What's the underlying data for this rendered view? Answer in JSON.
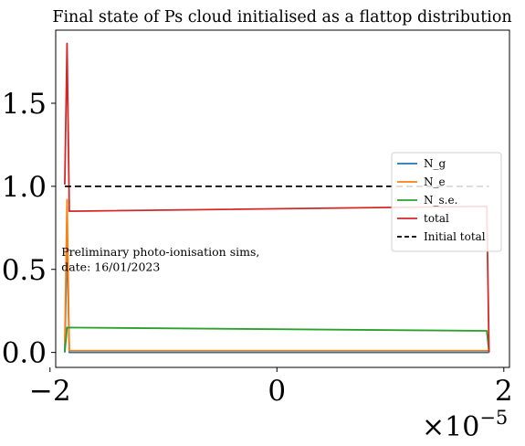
{
  "chart_data": {
    "type": "line",
    "title": "Final state of Ps cloud initialised as a flattop distribution",
    "xlabel": "",
    "ylabel": "",
    "x_multiplier_label": "×10",
    "x_multiplier_exponent": "−5",
    "xlim": [
      -1.95e-05,
      2.05e-05
    ],
    "ylim": [
      -0.09,
      1.94
    ],
    "x_ticks": [
      {
        "value": -2e-05,
        "label": "−2"
      },
      {
        "value": 0,
        "label": "0"
      },
      {
        "value": 2e-05,
        "label": "2"
      }
    ],
    "y_ticks": [
      {
        "value": 0.0,
        "label": "0.0"
      },
      {
        "value": 0.5,
        "label": "0.5"
      },
      {
        "value": 1.0,
        "label": "1.0"
      },
      {
        "value": 1.5,
        "label": "1.5"
      }
    ],
    "grid": false,
    "legend_position": "center-right",
    "series": [
      {
        "name": "N_g",
        "color": "#1f77b4",
        "dash": "",
        "x": [
          -1.87e-05,
          -1.85e-05,
          -1.83e-05,
          1.85e-05,
          1.87e-05
        ],
        "y": [
          0.0,
          0.68,
          0.0,
          0.0,
          0.0
        ]
      },
      {
        "name": "N_e",
        "color": "#ff7f0e",
        "dash": "",
        "x": [
          -1.87e-05,
          -1.85e-05,
          -1.83e-05,
          1.85e-05,
          1.87e-05
        ],
        "y": [
          0.05,
          0.92,
          0.01,
          0.01,
          0.01
        ]
      },
      {
        "name": "N_s.e.",
        "color": "#2ca02c",
        "dash": "",
        "x": [
          -1.87e-05,
          -1.85e-05,
          1.85e-05,
          1.87e-05
        ],
        "y": [
          0.0,
          0.15,
          0.13,
          0.0
        ]
      },
      {
        "name": "total",
        "color": "#d62728",
        "dash": "",
        "x": [
          -1.87e-05,
          -1.85e-05,
          -1.83e-05,
          1.85e-05,
          1.87e-05
        ],
        "y": [
          1.01,
          1.86,
          0.85,
          0.88,
          0.0
        ]
      },
      {
        "name": "Initial total",
        "color": "#000000",
        "dash": "7,4",
        "x": [
          -1.87e-05,
          1.87e-05
        ],
        "y": [
          1.0,
          1.0
        ]
      }
    ],
    "annotations": [
      {
        "text": "Preliminary photo-ionisation sims,",
        "x": -1.9e-05,
        "y": 0.58
      },
      {
        "text": "date: 16/01/2023",
        "x": -1.9e-05,
        "y": 0.49
      }
    ]
  }
}
